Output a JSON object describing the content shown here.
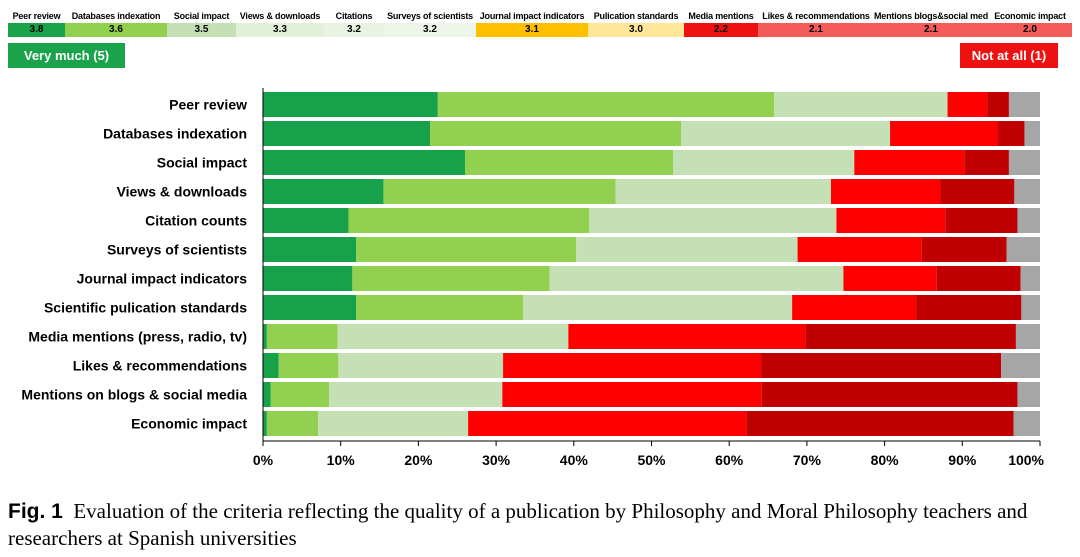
{
  "header_strip": [
    {
      "name": "Peer review",
      "score": "3.8",
      "color": "#1aa34a"
    },
    {
      "name": "Databases indexation",
      "score": "3.6",
      "color": "#92d050"
    },
    {
      "name": "Social impact",
      "score": "3.5",
      "color": "#c4e0b4"
    },
    {
      "name": "Views & downloads",
      "score": "3.3",
      "color": "#e2efd9"
    },
    {
      "name": "Citations",
      "score": "3.2",
      "color": "#e8f3e1"
    },
    {
      "name": "Surveys of scientists",
      "score": "3.2",
      "color": "#edf5e8"
    },
    {
      "name": "Journal impact indicators",
      "score": "3.1",
      "color": "#ffc000"
    },
    {
      "name": "Pulication standards",
      "score": "3.0",
      "color": "#ffe699"
    },
    {
      "name": "Media mentions",
      "score": "2.2",
      "color": "#ee1111"
    },
    {
      "name": "Likes & recommendations",
      "score": "2.1",
      "color": "#f45b5b"
    },
    {
      "name": "Mentions blogs&social media",
      "score": "2.1",
      "color": "#f45b5b"
    },
    {
      "name": "Economic impact",
      "score": "2.0",
      "color": "#f45b5b"
    }
  ],
  "legend": {
    "high_label": "Very much  (5)",
    "low_label": "Not at all (1)"
  },
  "chart_data": {
    "type": "bar",
    "orientation": "horizontal",
    "stacked": "100%",
    "categories": [
      "Peer review",
      "Databases indexation",
      "Social impact",
      "Views & downloads",
      "Citation counts",
      "Surveys of scientists",
      "Journal impact indicators",
      "Scientific pulication standards",
      "Media mentions (press, radio, tv)",
      "Likes & recommendations",
      "Mentions on blogs & social media",
      "Economic impact"
    ],
    "series": [
      {
        "color": "#18a14b",
        "values": [
          22.5,
          21.5,
          26.0,
          15.5,
          11.0,
          12.0,
          11.5,
          12.0,
          0.5,
          2.0,
          1.0,
          0.5
        ]
      },
      {
        "color": "#92d050",
        "values": [
          43.3,
          32.3,
          26.8,
          29.9,
          31.0,
          28.3,
          25.4,
          21.5,
          9.1,
          7.7,
          7.5,
          6.6
        ]
      },
      {
        "color": "#c5e0b4",
        "values": [
          22.3,
          26.9,
          23.3,
          27.7,
          31.8,
          28.5,
          37.8,
          34.6,
          29.7,
          21.2,
          22.3,
          19.3
        ]
      },
      {
        "color": "#ff0000",
        "values": [
          5.1,
          13.9,
          14.2,
          14.1,
          14.0,
          16.0,
          12.0,
          16.0,
          30.5,
          33.2,
          33.4,
          35.8
        ]
      },
      {
        "color": "#c00000",
        "values": [
          2.8,
          3.4,
          5.7,
          9.5,
          9.3,
          10.9,
          10.8,
          13.5,
          27.1,
          30.9,
          32.9,
          34.4
        ]
      },
      {
        "color": "#a6a6a6",
        "values": [
          4.0,
          2.0,
          4.0,
          3.3,
          2.9,
          4.3,
          2.5,
          2.4,
          3.1,
          5.0,
          2.9,
          3.4
        ]
      }
    ],
    "xlim": [
      0,
      100
    ],
    "xticks": [
      "0%",
      "10%",
      "20%",
      "30%",
      "40%",
      "50%",
      "60%",
      "70%",
      "80%",
      "90%",
      "100%"
    ],
    "grid": false
  },
  "caption": {
    "label": "Fig. 1",
    "text": "Evaluation of the criteria reflecting the quality of a publication by Philosophy and Moral Philosophy teachers and researchers at Spanish universities"
  }
}
